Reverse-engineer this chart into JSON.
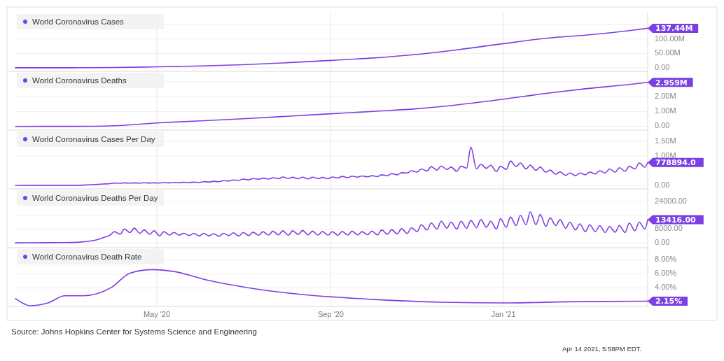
{
  "chart_data": [
    {
      "type": "line",
      "xlim": [
        "2020-01-22",
        "2021-04-13"
      ],
      "xticks": [
        {
          "value": "2020-05-01",
          "label": null
        },
        {
          "value": "2020-09-01",
          "label": null
        },
        {
          "value": "2021-01-01",
          "label": null
        }
      ],
      "ylim": [
        -12500000,
        192000000
      ],
      "yticks": [
        {
          "value": 0,
          "label": "0.00"
        },
        {
          "value": 50000000,
          "label": "50.00M"
        },
        {
          "value": 100000000,
          "label": "100.00M"
        },
        {
          "value": 150000000,
          "label": null
        }
      ],
      "grid": true,
      "legend": "top left",
      "tick_labels": "y",
      "series": [
        {
          "name": "World Coronavirus Cases",
          "color": "#7b3fe4",
          "x": [
            "2020-01-22",
            "2020-03-01",
            "2020-04-01",
            "2020-05-01",
            "2020-06-01",
            "2020-07-01",
            "2020-08-01",
            "2020-09-01",
            "2020-10-01",
            "2020-11-01",
            "2020-12-01",
            "2021-01-01",
            "2021-02-01",
            "2021-03-01",
            "2021-04-01",
            "2021-04-13"
          ],
          "values": [
            0,
            90000,
            900000,
            3300000,
            6200000,
            10600000,
            17600000,
            25600000,
            34000000,
            46500000,
            63500000,
            84000000,
            103000000,
            114000000,
            130000000,
            137440000
          ]
        }
      ],
      "annotations": [
        {
          "text": "137.44M",
          "x": "2021-04-13",
          "y": 137440000
        }
      ]
    },
    {
      "type": "line",
      "xlim": [
        "2020-01-22",
        "2021-04-13"
      ],
      "xticks": [
        {
          "value": "2020-05-01",
          "label": null
        },
        {
          "value": "2020-09-01",
          "label": null
        },
        {
          "value": "2021-01-01",
          "label": null
        }
      ],
      "ylim": [
        -250000,
        3700000
      ],
      "yticks": [
        {
          "value": 0,
          "label": "0.00"
        },
        {
          "value": 1000000,
          "label": "1.00M"
        },
        {
          "value": 2000000,
          "label": "2.00M"
        },
        {
          "value": 3000000,
          "label": null
        }
      ],
      "grid": true,
      "legend": "top left",
      "tick_labels": "y",
      "series": [
        {
          "name": "World Coronavirus Deaths",
          "color": "#7b3fe4",
          "x": [
            "2020-01-22",
            "2020-03-01",
            "2020-04-01",
            "2020-05-01",
            "2020-06-01",
            "2020-07-01",
            "2020-08-01",
            "2020-09-01",
            "2020-10-01",
            "2020-11-01",
            "2020-12-01",
            "2021-01-01",
            "2021-02-01",
            "2021-03-01",
            "2021-04-01",
            "2021-04-13"
          ],
          "values": [
            0,
            3000,
            47000,
            234000,
            373000,
            516000,
            680000,
            850000,
            1010000,
            1190000,
            1470000,
            1830000,
            2230000,
            2540000,
            2830000,
            2959000
          ]
        }
      ],
      "annotations": [
        {
          "text": "2.959M",
          "x": "2021-04-13",
          "y": 2959000
        }
      ]
    },
    {
      "type": "line",
      "xlim": [
        "2020-01-22",
        "2021-04-13"
      ],
      "xticks": [
        {
          "value": "2020-05-01",
          "label": null
        },
        {
          "value": "2020-09-01",
          "label": null
        },
        {
          "value": "2021-01-01",
          "label": null
        }
      ],
      "ylim": [
        -120000,
        1880000
      ],
      "yticks": [
        {
          "value": 0,
          "label": "0.00"
        },
        {
          "value": 1000000,
          "label": "1.00M"
        },
        {
          "value": 1500000,
          "label": "1.50M"
        }
      ],
      "grid": true,
      "legend": "top left",
      "tick_labels": "y",
      "series": [
        {
          "name": "World Coronavirus Cases Per Day",
          "color": "#7b3fe4",
          "x": [
            "2020-01-22",
            "2020-02-01",
            "2020-02-15",
            "2020-03-01",
            "2020-03-10",
            "2020-03-18",
            "2020-03-24",
            "2020-03-29",
            "2020-04-01",
            "2020-04-05",
            "2020-04-08",
            "2020-04-12",
            "2020-04-15",
            "2020-04-19",
            "2020-04-22",
            "2020-04-26",
            "2020-04-29",
            "2020-05-03",
            "2020-05-06",
            "2020-05-10",
            "2020-05-13",
            "2020-05-17",
            "2020-05-20",
            "2020-05-24",
            "2020-05-27",
            "2020-05-31",
            "2020-06-03",
            "2020-06-07",
            "2020-06-10",
            "2020-06-14",
            "2020-06-17",
            "2020-06-21",
            "2020-06-24",
            "2020-06-28",
            "2020-07-01",
            "2020-07-05",
            "2020-07-08",
            "2020-07-12",
            "2020-07-15",
            "2020-07-19",
            "2020-07-22",
            "2020-07-26",
            "2020-07-29",
            "2020-08-02",
            "2020-08-05",
            "2020-08-09",
            "2020-08-12",
            "2020-08-16",
            "2020-08-19",
            "2020-08-23",
            "2020-08-26",
            "2020-08-30",
            "2020-09-02",
            "2020-09-06",
            "2020-09-09",
            "2020-09-13",
            "2020-09-16",
            "2020-09-20",
            "2020-09-23",
            "2020-09-27",
            "2020-09-30",
            "2020-10-04",
            "2020-10-07",
            "2020-10-11",
            "2020-10-14",
            "2020-10-18",
            "2020-10-21",
            "2020-10-25",
            "2020-10-28",
            "2020-11-01",
            "2020-11-04",
            "2020-11-08",
            "2020-11-11",
            "2020-11-15",
            "2020-11-18",
            "2020-11-22",
            "2020-11-25",
            "2020-11-29",
            "2020-12-02",
            "2020-12-06",
            "2020-12-09",
            "2020-12-13",
            "2020-12-16",
            "2020-12-20",
            "2020-12-23",
            "2020-12-27",
            "2020-12-30",
            "2021-01-03",
            "2021-01-06",
            "2021-01-10",
            "2021-01-13",
            "2021-01-17",
            "2021-01-20",
            "2021-01-24",
            "2021-01-27",
            "2021-01-31",
            "2021-02-03",
            "2021-02-07",
            "2021-02-10",
            "2021-02-14",
            "2021-02-17",
            "2021-02-21",
            "2021-02-24",
            "2021-02-28",
            "2021-03-03",
            "2021-03-07",
            "2021-03-10",
            "2021-03-14",
            "2021-03-17",
            "2021-03-21",
            "2021-03-24",
            "2021-03-28",
            "2021-03-31",
            "2021-04-04",
            "2021-04-07",
            "2021-04-11",
            "2021-04-13"
          ],
          "values": [
            0,
            2000,
            1000,
            2000,
            8000,
            30000,
            45000,
            60000,
            80000,
            70000,
            85000,
            75000,
            85000,
            75000,
            88000,
            80000,
            85000,
            78000,
            95000,
            85000,
            100000,
            90000,
            105000,
            95000,
            110000,
            100000,
            125000,
            115000,
            140000,
            125000,
            160000,
            150000,
            185000,
            170000,
            215000,
            190000,
            230000,
            210000,
            245000,
            215000,
            260000,
            225000,
            285000,
            240000,
            275000,
            225000,
            280000,
            220000,
            280000,
            230000,
            270000,
            225000,
            285000,
            250000,
            305000,
            260000,
            315000,
            280000,
            320000,
            290000,
            330000,
            300000,
            360000,
            330000,
            400000,
            360000,
            430000,
            420000,
            500000,
            450000,
            560000,
            490000,
            640000,
            520000,
            660000,
            540000,
            620000,
            480000,
            650000,
            590000,
            1300000,
            560000,
            720000,
            580000,
            690000,
            470000,
            650000,
            540000,
            830000,
            640000,
            760000,
            560000,
            690000,
            510000,
            620000,
            450000,
            520000,
            380000,
            460000,
            340000,
            420000,
            330000,
            420000,
            360000,
            450000,
            390000,
            500000,
            420000,
            560000,
            450000,
            600000,
            480000,
            650000,
            560000,
            760000,
            620000,
            778894
          ]
        }
      ],
      "annotations": [
        {
          "text": "778894.0",
          "x": "2021-04-13",
          "y": 778894
        }
      ]
    },
    {
      "type": "line",
      "xlim": [
        "2020-01-22",
        "2021-04-13"
      ],
      "xticks": [
        {
          "value": "2020-05-01",
          "label": null
        },
        {
          "value": "2020-09-01",
          "label": null
        },
        {
          "value": "2021-01-01",
          "label": null
        }
      ],
      "ylim": [
        -2800,
        31300
      ],
      "yticks": [
        {
          "value": 0,
          "label": "0.00"
        },
        {
          "value": 8000,
          "label": "8000.00"
        },
        {
          "value": 16000,
          "label": null
        },
        {
          "value": 24000,
          "label": "24000.00"
        }
      ],
      "grid": true,
      "legend": "top left",
      "tick_labels": "y",
      "series": [
        {
          "name": "World Coronavirus Deaths Per Day",
          "color": "#7b3fe4",
          "x": [
            "2020-01-22",
            "2020-02-01",
            "2020-02-15",
            "2020-03-01",
            "2020-03-10",
            "2020-03-18",
            "2020-03-24",
            "2020-03-29",
            "2020-04-01",
            "2020-04-05",
            "2020-04-08",
            "2020-04-12",
            "2020-04-15",
            "2020-04-19",
            "2020-04-22",
            "2020-04-26",
            "2020-04-29",
            "2020-05-03",
            "2020-05-06",
            "2020-05-10",
            "2020-05-13",
            "2020-05-17",
            "2020-05-20",
            "2020-05-24",
            "2020-05-27",
            "2020-05-31",
            "2020-06-03",
            "2020-06-07",
            "2020-06-10",
            "2020-06-14",
            "2020-06-17",
            "2020-06-21",
            "2020-06-24",
            "2020-06-28",
            "2020-07-01",
            "2020-07-05",
            "2020-07-08",
            "2020-07-12",
            "2020-07-15",
            "2020-07-19",
            "2020-07-22",
            "2020-07-26",
            "2020-07-29",
            "2020-08-02",
            "2020-08-05",
            "2020-08-09",
            "2020-08-12",
            "2020-08-16",
            "2020-08-19",
            "2020-08-23",
            "2020-08-26",
            "2020-08-30",
            "2020-09-02",
            "2020-09-06",
            "2020-09-09",
            "2020-09-13",
            "2020-09-16",
            "2020-09-20",
            "2020-09-23",
            "2020-09-27",
            "2020-09-30",
            "2020-10-04",
            "2020-10-07",
            "2020-10-11",
            "2020-10-14",
            "2020-10-18",
            "2020-10-21",
            "2020-10-25",
            "2020-10-28",
            "2020-11-01",
            "2020-11-04",
            "2020-11-08",
            "2020-11-11",
            "2020-11-15",
            "2020-11-18",
            "2020-11-22",
            "2020-11-25",
            "2020-11-29",
            "2020-12-02",
            "2020-12-06",
            "2020-12-09",
            "2020-12-13",
            "2020-12-16",
            "2020-12-20",
            "2020-12-23",
            "2020-12-27",
            "2020-12-30",
            "2021-01-03",
            "2021-01-06",
            "2021-01-10",
            "2021-01-13",
            "2021-01-17",
            "2021-01-20",
            "2021-01-24",
            "2021-01-27",
            "2021-01-31",
            "2021-02-03",
            "2021-02-07",
            "2021-02-10",
            "2021-02-14",
            "2021-02-17",
            "2021-02-21",
            "2021-02-24",
            "2021-02-28",
            "2021-03-03",
            "2021-03-07",
            "2021-03-10",
            "2021-03-14",
            "2021-03-17",
            "2021-03-21",
            "2021-03-24",
            "2021-03-28",
            "2021-03-31",
            "2021-04-04",
            "2021-04-07",
            "2021-04-11",
            "2021-04-13"
          ],
          "values": [
            0,
            50,
            100,
            200,
            600,
            1500,
            3000,
            4500,
            6500,
            5000,
            8000,
            6000,
            8500,
            5500,
            7500,
            5000,
            7000,
            4000,
            6500,
            4500,
            6000,
            4500,
            5500,
            4200,
            5500,
            4000,
            5500,
            4000,
            5300,
            3800,
            5500,
            4200,
            5800,
            4000,
            6000,
            4200,
            6200,
            4400,
            6500,
            4500,
            6800,
            4600,
            7000,
            4500,
            7000,
            4800,
            7200,
            4600,
            6800,
            4500,
            6600,
            4400,
            6500,
            4400,
            6600,
            4500,
            6800,
            4600,
            6500,
            4700,
            6800,
            4600,
            7500,
            5000,
            7600,
            5200,
            8200,
            5500,
            8800,
            6500,
            10500,
            7500,
            11500,
            8000,
            12500,
            8500,
            12000,
            8000,
            12500,
            8500,
            13000,
            8800,
            13500,
            9000,
            12500,
            8000,
            14000,
            9000,
            15000,
            10000,
            16000,
            10500,
            18000,
            10500,
            16500,
            9500,
            14500,
            10000,
            13500,
            8500,
            12000,
            7500,
            11000,
            6500,
            10500,
            6500,
            10000,
            6000,
            9500,
            6200,
            10000,
            6000,
            11500,
            7000,
            12000,
            8000,
            13416
          ]
        }
      ],
      "annotations": [
        {
          "text": "13416.00",
          "x": "2021-04-13",
          "y": 13416
        }
      ]
    },
    {
      "type": "line",
      "xlim": [
        "2020-01-22",
        "2021-04-13"
      ],
      "xticks": [
        {
          "value": "2020-05-01",
          "label": "May '20"
        },
        {
          "value": "2020-09-01",
          "label": "Sep '20"
        },
        {
          "value": "2021-01-01",
          "label": "Jan '21"
        }
      ],
      "ylim": [
        1.4,
        9.7
      ],
      "yticks": [
        {
          "value": 4,
          "label": "4.00%"
        },
        {
          "value": 6,
          "label": "6.00%"
        },
        {
          "value": 8,
          "label": "8.00%"
        }
      ],
      "grid": true,
      "legend": "top left",
      "series": [
        {
          "name": "World Coronavirus Death Rate",
          "color": "#7b3fe4",
          "x": [
            "2020-01-22",
            "2020-01-29",
            "2020-02-01",
            "2020-02-14",
            "2020-02-26",
            "2020-03-10",
            "2020-03-30",
            "2020-04-12",
            "2020-04-28",
            "2020-05-14",
            "2020-06-06",
            "2020-07-09",
            "2020-08-11",
            "2020-09-30",
            "2020-11-18",
            "2021-01-05",
            "2021-02-15",
            "2021-03-15",
            "2021-04-13"
          ],
          "values": [
            2.5,
            1.7,
            1.5,
            1.9,
            2.9,
            2.9,
            4.1,
            6.1,
            6.6,
            6.3,
            5.1,
            3.9,
            3.1,
            2.4,
            2.0,
            1.9,
            2.05,
            2.1,
            2.15
          ]
        }
      ],
      "annotations": [
        {
          "text": "2.15%",
          "x": "2021-04-13",
          "y": 2.15
        },
        "Source: Johns Hopkins Center for Systems Science and Engineering",
        "Apr 14 2021, 5:58PM EDT."
      ]
    }
  ]
}
